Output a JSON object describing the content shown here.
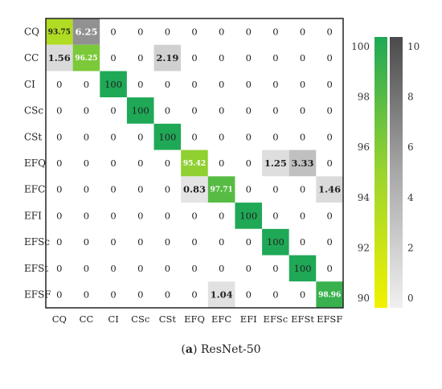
{
  "caption": {
    "label": "(a)",
    "label_letter": "a",
    "text": "ResNet-50"
  },
  "chart_data": {
    "type": "heatmap",
    "title": "",
    "xlabel": "",
    "ylabel": "",
    "row_labels": [
      "CQ",
      "CC",
      "CI",
      "CSc",
      "CSt",
      "EFQ",
      "EFC",
      "EFI",
      "EFSc",
      "EFSt",
      "EFSF"
    ],
    "col_labels": [
      "CQ",
      "CC",
      "CI",
      "CSc",
      "CSt",
      "EFQ",
      "EFC",
      "EFI",
      "EFSc",
      "EFSt",
      "EFSF"
    ],
    "values": [
      [
        "93.75",
        "6.25",
        "0",
        "0",
        "0",
        "0",
        "0",
        "0",
        "0",
        "0",
        "0"
      ],
      [
        "1.56",
        "96.25",
        "0",
        "0",
        "2.19",
        "0",
        "0",
        "0",
        "0",
        "0",
        "0"
      ],
      [
        "0",
        "0",
        "100",
        "0",
        "0",
        "0",
        "0",
        "0",
        "0",
        "0",
        "0"
      ],
      [
        "0",
        "0",
        "0",
        "100",
        "0",
        "0",
        "0",
        "0",
        "0",
        "0",
        "0"
      ],
      [
        "0",
        "0",
        "0",
        "0",
        "100",
        "0",
        "0",
        "0",
        "0",
        "0",
        "0"
      ],
      [
        "0",
        "0",
        "0",
        "0",
        "0",
        "95.42",
        "0",
        "0",
        "1.25",
        "3.33",
        "0"
      ],
      [
        "0",
        "0",
        "0",
        "0",
        "0",
        "0.83",
        "97.71",
        "0",
        "0",
        "0",
        "1.46"
      ],
      [
        "0",
        "0",
        "0",
        "0",
        "0",
        "0",
        "0",
        "100",
        "0",
        "0",
        "0"
      ],
      [
        "0",
        "0",
        "0",
        "0",
        "0",
        "0",
        "0",
        "0",
        "100",
        "0",
        "0"
      ],
      [
        "0",
        "0",
        "0",
        "0",
        "0",
        "0",
        "0",
        "0",
        "0",
        "100",
        "0"
      ],
      [
        "0",
        "0",
        "0",
        "0",
        "0",
        "0",
        "1.04",
        "0",
        "0",
        "0",
        "98.96"
      ]
    ],
    "diagonal_colorbar": {
      "range": [
        90,
        100
      ],
      "ticks": [
        "100",
        "98",
        "96",
        "94",
        "92",
        "90"
      ],
      "colors": [
        "#1fa856",
        "#9ad42e",
        "#f2f200"
      ]
    },
    "offdiagonal_colorbar": {
      "range": [
        0,
        10
      ],
      "ticks": [
        "10",
        "8",
        "6",
        "4",
        "2",
        "0"
      ],
      "colors": [
        "#4a4a4a",
        "#a8a8a8",
        "#f0f0f0"
      ]
    },
    "grid": false,
    "legend": "right"
  }
}
